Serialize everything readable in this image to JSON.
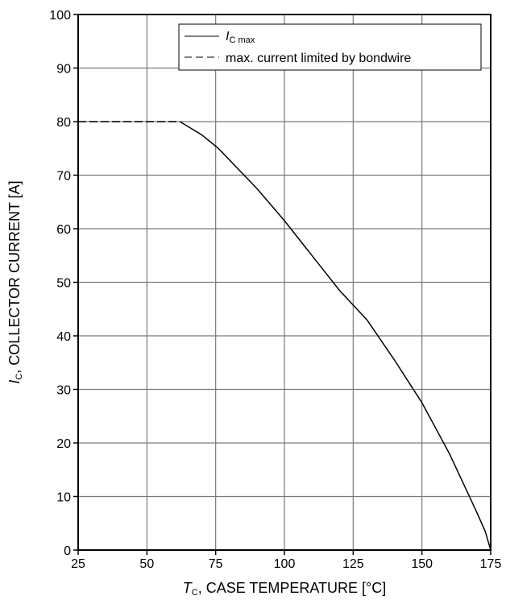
{
  "chart_data": {
    "type": "line",
    "xlabel": {
      "symbol": "T",
      "subscript": "C",
      "text": ", CASE TEMPERATURE [°C]"
    },
    "ylabel": {
      "symbol": "I",
      "subscript": "C",
      "text": ", COLLECTOR CURRENT [A]"
    },
    "xlim": [
      25,
      175
    ],
    "ylim": [
      0,
      100
    ],
    "xticks": [
      25,
      50,
      75,
      100,
      125,
      150,
      175
    ],
    "yticks": [
      0,
      10,
      20,
      30,
      40,
      50,
      60,
      70,
      80,
      90,
      100
    ],
    "grid": true,
    "legend_position": "top-right",
    "series": [
      {
        "legend": {
          "symbol": "I",
          "subscript": "C max"
        },
        "style": "solid",
        "color": "#000000",
        "x": [
          62,
          70,
          76,
          90,
          100,
          110,
          120,
          130,
          140,
          150,
          160,
          165,
          170,
          173,
          175
        ],
        "y": [
          80,
          77.5,
          75,
          67.5,
          61.5,
          55,
          48.5,
          43,
          35.5,
          27.5,
          18,
          12.5,
          7,
          3.5,
          0
        ]
      },
      {
        "name": "max. current limited by bondwire",
        "style": "dashed",
        "color": "#000000",
        "x": [
          25,
          62
        ],
        "y": [
          80,
          80
        ]
      }
    ]
  }
}
